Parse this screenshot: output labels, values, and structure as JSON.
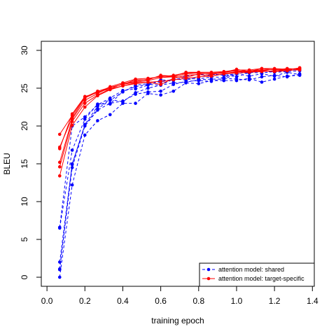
{
  "chart_data": {
    "type": "line",
    "title": "",
    "xlabel": "training epoch",
    "ylabel": "BLEU",
    "xlim": [
      -0.03,
      1.41
    ],
    "ylim": [
      -1.2,
      31.2
    ],
    "x_ticks": [
      "0.0",
      "0.2",
      "0.4",
      "0.6",
      "0.8",
      "1.0",
      "1.2",
      "1.4"
    ],
    "y_ticks": [
      "0",
      "5",
      "10",
      "15",
      "20",
      "25",
      "30"
    ],
    "grid": false,
    "legend_position": "bottom-right",
    "x": [
      0.067,
      0.133,
      0.2,
      0.267,
      0.333,
      0.4,
      0.467,
      0.533,
      0.6,
      0.667,
      0.733,
      0.8,
      0.867,
      0.933,
      1.0,
      1.067,
      1.133,
      1.2,
      1.267,
      1.333
    ],
    "groups": [
      {
        "name": "attention model: shared",
        "color": "#0000ff",
        "line_style": "dashed",
        "runs": [
          [
            0.0,
            12.2,
            18.8,
            20.7,
            21.5,
            23.0,
            23.0,
            24.3,
            24.1,
            24.6,
            25.7,
            25.6,
            26.0,
            26.0,
            26.0,
            26.3,
            25.8,
            26.2,
            26.6,
            26.7
          ],
          [
            1.1,
            14.5,
            20.0,
            22.1,
            23.0,
            23.3,
            24.2,
            24.5,
            24.6,
            25.5,
            25.9,
            26.0,
            25.9,
            26.3,
            26.2,
            26.1,
            26.5,
            26.7,
            26.5,
            26.9
          ],
          [
            2.0,
            14.9,
            20.2,
            22.6,
            23.5,
            23.2,
            24.4,
            25.0,
            25.4,
            25.7,
            25.8,
            26.1,
            26.2,
            26.2,
            26.9,
            26.6,
            26.9,
            26.6,
            27.1,
            26.8
          ],
          [
            6.5,
            16.8,
            20.9,
            22.9,
            22.9,
            24.6,
            25.2,
            25.5,
            25.4,
            26.2,
            26.1,
            26.4,
            26.8,
            26.8,
            26.5,
            27.1,
            27.0,
            27.2,
            27.3,
            27.5
          ],
          [
            6.6,
            20.0,
            21.2,
            22.8,
            23.7,
            24.7,
            24.9,
            25.4,
            26.1,
            26.0,
            26.6,
            26.8,
            26.9,
            26.7,
            26.9,
            27.3,
            27.2,
            27.3,
            27.4,
            27.6
          ],
          [
            1.0,
            15.0,
            20.1,
            22.3,
            23.4,
            24.5,
            25.4,
            25.6,
            25.8,
            26.2,
            26.3,
            26.2,
            26.5,
            26.4,
            27.0,
            27.0,
            27.3,
            27.1,
            27.2,
            27.3
          ]
        ]
      },
      {
        "name": "attention model: target-specific",
        "color": "#ff0000",
        "line_style": "solid",
        "runs": [
          [
            13.4,
            20.1,
            22.5,
            24.0,
            24.8,
            25.3,
            25.6,
            25.8,
            25.9,
            26.1,
            26.3,
            26.5,
            26.6,
            26.9,
            27.0,
            27.1,
            27.2,
            27.3,
            27.4,
            27.4
          ],
          [
            14.6,
            20.6,
            23.0,
            24.1,
            24.9,
            25.3,
            25.7,
            25.8,
            25.5,
            26.3,
            26.7,
            26.8,
            26.6,
            26.9,
            27.2,
            27.1,
            27.3,
            27.2,
            27.3,
            27.5
          ],
          [
            15.2,
            20.9,
            23.4,
            24.3,
            25.1,
            25.5,
            25.8,
            26.0,
            26.4,
            26.5,
            26.4,
            26.9,
            26.9,
            27.0,
            27.1,
            27.3,
            27.4,
            27.2,
            27.5,
            27.6
          ],
          [
            17.2,
            21.1,
            23.7,
            24.5,
            24.9,
            25.6,
            25.9,
            26.2,
            26.6,
            26.5,
            26.9,
            27.0,
            26.8,
            27.1,
            27.3,
            27.2,
            27.4,
            27.5,
            27.4,
            27.7
          ],
          [
            18.9,
            21.4,
            23.8,
            24.6,
            25.1,
            25.5,
            26.1,
            26.1,
            26.7,
            26.6,
            27.1,
            27.1,
            27.0,
            27.1,
            27.5,
            27.2,
            27.6,
            27.4,
            27.6,
            27.5
          ],
          [
            17.0,
            21.6,
            23.9,
            24.4,
            25.2,
            25.7,
            26.2,
            26.3,
            26.5,
            26.7,
            27.0,
            27.1,
            27.1,
            27.2,
            27.4,
            27.4,
            27.6,
            27.6,
            27.5,
            27.6
          ]
        ]
      }
    ]
  }
}
